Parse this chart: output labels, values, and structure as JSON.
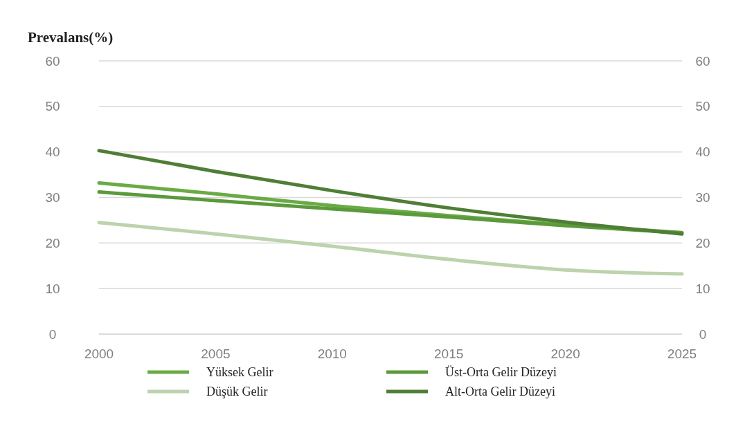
{
  "chart_data": {
    "type": "line",
    "title": "Prevalans(%)",
    "x": [
      2000,
      2005,
      2010,
      2015,
      2020,
      2025
    ],
    "xlim": [
      2000,
      2025
    ],
    "xticks": [
      2000,
      2005,
      2010,
      2015,
      2020,
      2025
    ],
    "ylim": [
      0,
      60
    ],
    "yticks": [
      0,
      10,
      20,
      30,
      40,
      50,
      60
    ],
    "y2lim": [
      0,
      60
    ],
    "y2ticks": [
      0,
      10,
      20,
      30,
      40,
      50,
      60
    ],
    "grid": "y",
    "legend": "bottom",
    "marker": "none",
    "line_style": "solid",
    "series": [
      {
        "name": "Yüksek Gelir",
        "color": "#6aab45",
        "values": [
          33.2,
          30.8,
          28.2,
          26,
          24,
          22.3
        ]
      },
      {
        "name": "Üst-Orta Gelir Düzeyi",
        "color": "#5b9a3b",
        "values": [
          31.2,
          29.3,
          27.5,
          25.7,
          23.8,
          22.2
        ]
      },
      {
        "name": "Düşük Gelir",
        "color": "#bcd3ad",
        "values": [
          24.5,
          22,
          19.3,
          16.4,
          14.1,
          13.2
        ]
      },
      {
        "name": "Alt-Orta Gelir Düzeyi",
        "color": "#4f7e36",
        "values": [
          40.3,
          35.7,
          31.5,
          27.7,
          24.6,
          22
        ]
      }
    ]
  }
}
